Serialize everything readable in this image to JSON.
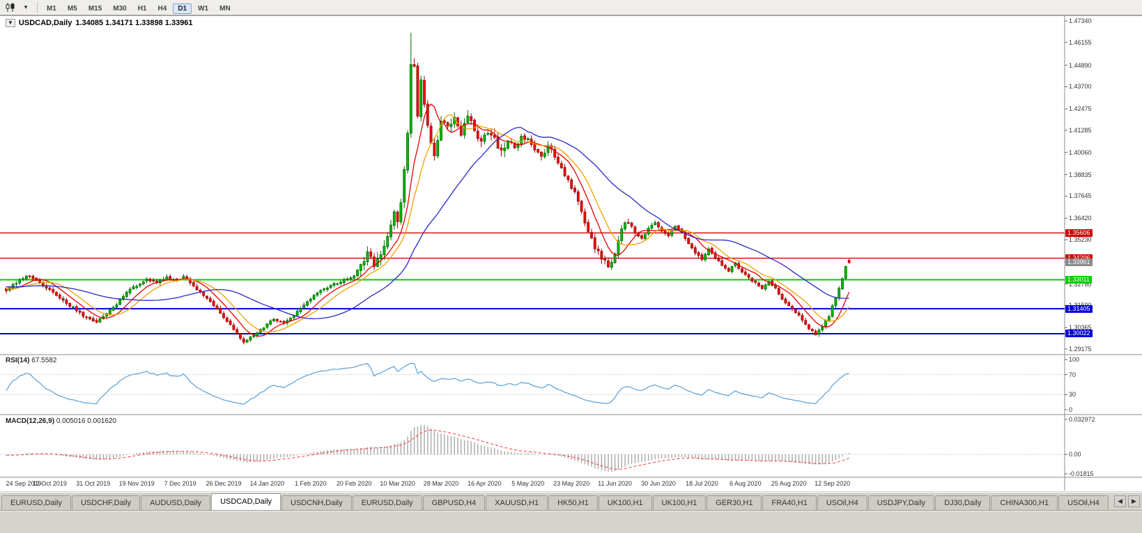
{
  "toolbar": {
    "timeframes": [
      "M1",
      "M5",
      "M15",
      "M30",
      "H1",
      "H4",
      "D1",
      "W1",
      "MN"
    ],
    "active_timeframe": "D1"
  },
  "icons": {
    "chart_dropdown_caret": "▾",
    "title_collapse": "▼",
    "tab_scroll_left": "◀",
    "tab_scroll_right": "▶"
  },
  "chart": {
    "symbol_period": "USDCAD,Daily",
    "ohlc_text": "1.34085 1.34171 1.33898 1.33961",
    "price_axis_labels": [
      "1.47340",
      "1.46155",
      "1.44890",
      "1.43700",
      "1.42475",
      "1.41285",
      "1.40060",
      "1.38835",
      "1.37645",
      "1.36420",
      "1.35230",
      "1.34005",
      "1.32780",
      "1.31590",
      "1.30365",
      "1.29175"
    ],
    "hlines": [
      {
        "label": "1.35606",
        "price": 1.35606,
        "color": "#d40000",
        "line": true,
        "width": 1.4
      },
      {
        "label": "1.34206",
        "price": 1.34206,
        "color": "#d40000",
        "line": true,
        "width": 1.4
      },
      {
        "label": "1.33961",
        "price": 1.33961,
        "color": "#8a8a8a",
        "line": false,
        "width": 0
      },
      {
        "label": "1.33011",
        "price": 1.33011,
        "color": "#00ce00",
        "line": true,
        "width": 2
      },
      {
        "label": "1.31405",
        "price": 1.31405,
        "color": "#0000d8",
        "line": true,
        "width": 2
      },
      {
        "label": "1.30022",
        "price": 1.30022,
        "color": "#0000d8",
        "line": true,
        "width": 2
      }
    ],
    "date_labels": [
      "24 Sep 2019",
      "12 Oct 2019",
      "31 Oct 2019",
      "19 Nov 2019",
      "7 Dec 2019",
      "26 Dec 2019",
      "14 Jan 2020",
      "1 Feb 2020",
      "20 Feb 2020",
      "10 Mar 2020",
      "28 Mar 2020",
      "16 Apr 2020",
      "5 May 2020",
      "23 May 2020",
      "11 Jun 2020",
      "30 Jun 2020",
      "18 Jul 2020",
      "6 Aug 2020",
      "25 Aug 2020",
      "12 Sep 2020"
    ]
  },
  "rsi_panel": {
    "name": "RSI(14)",
    "value": "67.5582",
    "axis_labels": [
      "100",
      "70",
      "30",
      "0"
    ],
    "line_color": "#569fd8",
    "level_lines": [
      70,
      30
    ]
  },
  "macd_panel": {
    "name": "MACD(12,26,9)",
    "values_text": "0.005016 0.001620",
    "axis_labels": [
      "0.032972",
      "0.00",
      "-0.01815"
    ],
    "histogram_color": "#a8a8a8",
    "signal_color": "#ff3434"
  },
  "tabs": [
    {
      "label": "EURUSD,Daily",
      "active": false
    },
    {
      "label": "USDCHF,Daily",
      "active": false
    },
    {
      "label": "AUDUSD,Daily",
      "active": false
    },
    {
      "label": "USDCAD,Daily",
      "active": true
    },
    {
      "label": "USDCNH,Daily",
      "active": false
    },
    {
      "label": "EURUSD,Daily",
      "active": false
    },
    {
      "label": "GBPUSD,H4",
      "active": false
    },
    {
      "label": "XAUUSD,H1",
      "active": false
    },
    {
      "label": "HK50,H1",
      "active": false
    },
    {
      "label": "UK100,H1",
      "active": false
    },
    {
      "label": "UK100,H1",
      "active": false
    },
    {
      "label": "GER30,H1",
      "active": false
    },
    {
      "label": "FRA40,H1",
      "active": false
    },
    {
      "label": "USOil,H4",
      "active": false
    },
    {
      "label": "USDJPY,Daily",
      "active": false
    },
    {
      "label": "DJ30,Daily",
      "active": false
    },
    {
      "label": "CHINA300,H1",
      "active": false
    },
    {
      "label": "USOil,H4",
      "active": false
    }
  ],
  "chart_data": {
    "type": "candlestick",
    "symbol": "USDCAD",
    "period": "Daily",
    "bars": 253,
    "price_axis": {
      "min": 1.2898,
      "max": 1.475
    },
    "up_color": "#00bb00",
    "up_stroke": "#006600",
    "down_color": "#ee1111",
    "down_stroke": "#990000",
    "close_anchors": [
      [
        0,
        1.324
      ],
      [
        3,
        1.3285
      ],
      [
        6,
        1.332
      ],
      [
        9,
        1.33
      ],
      [
        12,
        1.3258
      ],
      [
        15,
        1.3218
      ],
      [
        18,
        1.3172
      ],
      [
        21,
        1.3132
      ],
      [
        24,
        1.309
      ],
      [
        27,
        1.3062
      ],
      [
        30,
        1.3118
      ],
      [
        33,
        1.3165
      ],
      [
        36,
        1.323
      ],
      [
        39,
        1.327
      ],
      [
        42,
        1.33
      ],
      [
        45,
        1.3288
      ],
      [
        48,
        1.3312
      ],
      [
        51,
        1.3295
      ],
      [
        53,
        1.3318
      ],
      [
        56,
        1.3268
      ],
      [
        59,
        1.3215
      ],
      [
        62,
        1.3158
      ],
      [
        65,
        1.3095
      ],
      [
        68,
        1.303
      ],
      [
        71,
        1.2958
      ],
      [
        74,
        1.2992
      ],
      [
        77,
        1.304
      ],
      [
        80,
        1.3088
      ],
      [
        83,
        1.3058
      ],
      [
        86,
        1.3108
      ],
      [
        89,
        1.316
      ],
      [
        92,
        1.3218
      ],
      [
        95,
        1.3252
      ],
      [
        98,
        1.3278
      ],
      [
        101,
        1.3298
      ],
      [
        104,
        1.3318
      ],
      [
        106,
        1.3382
      ],
      [
        108,
        1.3442
      ],
      [
        110,
        1.3392
      ],
      [
        112,
        1.3425
      ],
      [
        114,
        1.3528
      ],
      [
        116,
        1.3662
      ],
      [
        117,
        1.3615
      ],
      [
        118,
        1.3745
      ],
      [
        119,
        1.3905
      ],
      [
        120,
        1.4125
      ],
      [
        121,
        1.451
      ],
      [
        122,
        1.4465
      ],
      [
        123,
        1.421
      ],
      [
        124,
        1.4425
      ],
      [
        125,
        1.4285
      ],
      [
        126,
        1.416
      ],
      [
        127,
        1.4065
      ],
      [
        128,
        1.3985
      ],
      [
        129,
        1.409
      ],
      [
        130,
        1.4195
      ],
      [
        132,
        1.4135
      ],
      [
        134,
        1.4185
      ],
      [
        136,
        1.4095
      ],
      [
        138,
        1.4215
      ],
      [
        140,
        1.4135
      ],
      [
        142,
        1.4062
      ],
      [
        144,
        1.4122
      ],
      [
        146,
        1.4082
      ],
      [
        148,
        1.4015
      ],
      [
        150,
        1.4082
      ],
      [
        152,
        1.4035
      ],
      [
        154,
        1.4092
      ],
      [
        156,
        1.4072
      ],
      [
        158,
        1.4012
      ],
      [
        160,
        1.3982
      ],
      [
        162,
        1.4042
      ],
      [
        164,
        1.3988
      ],
      [
        166,
        1.3922
      ],
      [
        168,
        1.3845
      ],
      [
        170,
        1.3782
      ],
      [
        172,
        1.3685
      ],
      [
        174,
        1.3565
      ],
      [
        176,
        1.3485
      ],
      [
        178,
        1.3425
      ],
      [
        180,
        1.3385
      ],
      [
        182,
        1.3432
      ],
      [
        184,
        1.3582
      ],
      [
        186,
        1.3625
      ],
      [
        188,
        1.3562
      ],
      [
        190,
        1.3532
      ],
      [
        192,
        1.3582
      ],
      [
        194,
        1.3622
      ],
      [
        196,
        1.3572
      ],
      [
        198,
        1.3542
      ],
      [
        200,
        1.3602
      ],
      [
        202,
        1.3562
      ],
      [
        204,
        1.3502
      ],
      [
        206,
        1.3452
      ],
      [
        208,
        1.3412
      ],
      [
        210,
        1.3472
      ],
      [
        212,
        1.3422
      ],
      [
        214,
        1.3382
      ],
      [
        216,
        1.3352
      ],
      [
        218,
        1.3392
      ],
      [
        220,
        1.3342
      ],
      [
        222,
        1.3312
      ],
      [
        224,
        1.3282
      ],
      [
        226,
        1.3252
      ],
      [
        228,
        1.3292
      ],
      [
        230,
        1.3252
      ],
      [
        232,
        1.3192
      ],
      [
        234,
        1.3162
      ],
      [
        236,
        1.3122
      ],
      [
        238,
        1.3082
      ],
      [
        240,
        1.3032
      ],
      [
        242,
        1.2998
      ],
      [
        244,
        1.3042
      ],
      [
        246,
        1.3102
      ],
      [
        248,
        1.3202
      ],
      [
        250,
        1.3302
      ],
      [
        251,
        1.3372
      ],
      [
        252,
        1.3396
      ]
    ],
    "wick_overrides": [
      [
        121,
        "high",
        1.4668
      ],
      [
        242,
        "low",
        1.2994
      ]
    ],
    "last_bar": {
      "open": 1.34085,
      "high": 1.34171,
      "low": 1.33898,
      "close": 1.33961
    },
    "moving_averages": [
      {
        "period": 8,
        "color": "#e60000"
      },
      {
        "period": 13,
        "color": "#f0a000"
      },
      {
        "period": 34,
        "color": "#2828c8"
      }
    ],
    "rsi": {
      "period": 14,
      "current": 67.5582,
      "axis_min": 0,
      "axis_max": 100
    },
    "macd": {
      "fast": 12,
      "slow": 26,
      "signal": 9,
      "current_macd": 0.005016,
      "current_signal": 0.00162,
      "axis_max": 0.032972,
      "axis_min": -0.01815
    }
  }
}
